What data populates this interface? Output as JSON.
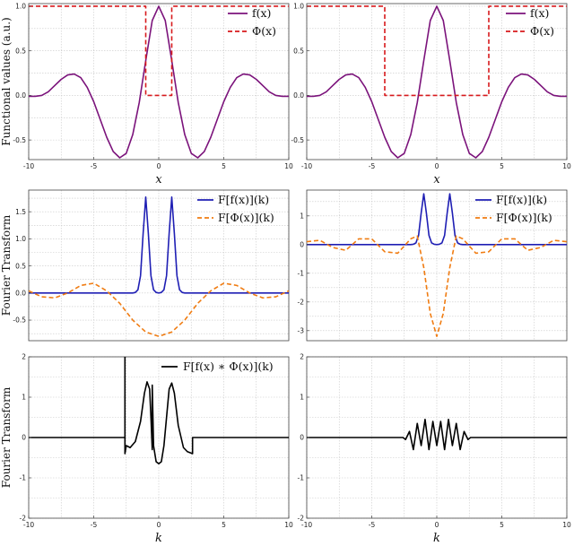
{
  "chart_data": [
    {
      "type": "line",
      "panel": "top-left",
      "xlabel": "x",
      "ylabel": "Functional values (a.u.)",
      "xlim": [
        -10,
        10
      ],
      "ylim": [
        -0.72,
        1.03
      ],
      "xticks": [
        "-10",
        "-5",
        "0",
        "5",
        "10"
      ],
      "yticks": [
        "-0.5",
        "0.0",
        "0.5",
        "1.0"
      ],
      "grid": true,
      "legend": "top-right",
      "series": [
        {
          "name": "f(x)",
          "color": "#7b137b",
          "dash": "solid",
          "x": [
            -10,
            -9.5,
            -9,
            -8.5,
            -8,
            -7.5,
            -7,
            -6.5,
            -6,
            -5.5,
            -5,
            -4.5,
            -4,
            -3.5,
            -3,
            -2.5,
            -2,
            -1.5,
            -1,
            -0.5,
            0,
            0.5,
            1,
            1.5,
            2,
            2.5,
            3,
            3.5,
            4,
            4.5,
            5,
            5.5,
            6,
            6.5,
            7,
            7.5,
            8,
            8.5,
            9,
            9.5,
            10
          ],
          "y": [
            -0.01,
            -0.01,
            0.0,
            0.04,
            0.11,
            0.18,
            0.23,
            0.24,
            0.2,
            0.09,
            -0.07,
            -0.27,
            -0.47,
            -0.63,
            -0.7,
            -0.65,
            -0.44,
            -0.08,
            0.39,
            0.84,
            1.0,
            0.84,
            0.39,
            -0.08,
            -0.44,
            -0.65,
            -0.7,
            -0.63,
            -0.47,
            -0.27,
            -0.07,
            0.09,
            0.2,
            0.24,
            0.23,
            0.18,
            0.11,
            0.04,
            0.0,
            -0.01,
            -0.01
          ]
        },
        {
          "name": "Φ(x)",
          "color": "#d7191c",
          "dash": "dashed",
          "x": [
            -10,
            -1,
            -1,
            1,
            1,
            10
          ],
          "y": [
            1,
            1,
            0,
            0,
            1,
            1
          ]
        }
      ]
    },
    {
      "type": "line",
      "panel": "top-right",
      "xlabel": "x",
      "ylabel": "",
      "xlim": [
        -10,
        10
      ],
      "ylim": [
        -0.72,
        1.03
      ],
      "xticks": [
        "-10",
        "-5",
        "0",
        "5",
        "10"
      ],
      "yticks": [
        "-0.5",
        "0.0",
        "0.5",
        "1.0"
      ],
      "grid": true,
      "legend": "top-right",
      "series": [
        {
          "name": "f(x)",
          "color": "#7b137b",
          "dash": "solid",
          "x": [
            -10,
            -9.5,
            -9,
            -8.5,
            -8,
            -7.5,
            -7,
            -6.5,
            -6,
            -5.5,
            -5,
            -4.5,
            -4,
            -3.5,
            -3,
            -2.5,
            -2,
            -1.5,
            -1,
            -0.5,
            0,
            0.5,
            1,
            1.5,
            2,
            2.5,
            3,
            3.5,
            4,
            4.5,
            5,
            5.5,
            6,
            6.5,
            7,
            7.5,
            8,
            8.5,
            9,
            9.5,
            10
          ],
          "y": [
            -0.01,
            -0.01,
            0.0,
            0.04,
            0.11,
            0.18,
            0.23,
            0.24,
            0.2,
            0.09,
            -0.07,
            -0.27,
            -0.47,
            -0.63,
            -0.7,
            -0.65,
            -0.44,
            -0.08,
            0.39,
            0.84,
            1.0,
            0.84,
            0.39,
            -0.08,
            -0.44,
            -0.65,
            -0.7,
            -0.63,
            -0.47,
            -0.27,
            -0.07,
            0.09,
            0.2,
            0.24,
            0.23,
            0.18,
            0.11,
            0.04,
            0.0,
            -0.01,
            -0.01
          ]
        },
        {
          "name": "Φ(x)",
          "color": "#d7191c",
          "dash": "dashed",
          "x": [
            -10,
            -4,
            -4,
            4,
            4,
            10
          ],
          "y": [
            1,
            1,
            0,
            0,
            1,
            1
          ]
        }
      ]
    },
    {
      "type": "line",
      "panel": "middle-left",
      "xlabel": "",
      "ylabel": "Fourier Transform",
      "xlim": [
        -10,
        10
      ],
      "ylim": [
        -0.88,
        1.9
      ],
      "xticks": [],
      "yticks": [
        "-0.5",
        "0.0",
        "0.5",
        "1.0",
        "1.5"
      ],
      "grid": true,
      "legend": "top-right",
      "series": [
        {
          "name": "F[f(x)](k)",
          "color": "#1f1fb4",
          "dash": "solid",
          "x": [
            -10,
            -2,
            -1.8,
            -1.6,
            -1.4,
            -1.2,
            -1,
            -0.8,
            -0.6,
            -0.4,
            -0.2,
            0,
            0.2,
            0.4,
            0.6,
            0.8,
            1,
            1.2,
            1.4,
            1.6,
            1.8,
            2,
            10
          ],
          "y": [
            0,
            0,
            0.01,
            0.06,
            0.32,
            1.1,
            1.77,
            1.1,
            0.32,
            0.06,
            0.01,
            0,
            0.01,
            0.06,
            0.32,
            1.1,
            1.77,
            1.1,
            0.32,
            0.06,
            0.01,
            0,
            0
          ]
        },
        {
          "name": "F[Φ(x)](k)",
          "color": "#f07c12",
          "dash": "dashed",
          "x": [
            -10,
            -9,
            -8,
            -7,
            -6,
            -5,
            -4,
            -3,
            -2,
            -1,
            0,
            1,
            2,
            3,
            4,
            5,
            6,
            7,
            8,
            9,
            10
          ],
          "y": [
            0.04,
            -0.07,
            -0.09,
            0.0,
            0.14,
            0.18,
            0.04,
            -0.19,
            -0.5,
            -0.72,
            -0.8,
            -0.72,
            -0.5,
            -0.19,
            0.04,
            0.18,
            0.14,
            0.0,
            -0.09,
            -0.07,
            0.04
          ]
        }
      ]
    },
    {
      "type": "line",
      "panel": "middle-right",
      "xlabel": "",
      "ylabel": "",
      "xlim": [
        -10,
        10
      ],
      "ylim": [
        -3.35,
        1.9
      ],
      "xticks": [],
      "yticks": [
        "-3",
        "-2",
        "-1",
        "0",
        "1"
      ],
      "grid": true,
      "legend": "top-right",
      "series": [
        {
          "name": "F[f(x)](k)",
          "color": "#1f1fb4",
          "dash": "solid",
          "x": [
            -10,
            -2,
            -1.8,
            -1.6,
            -1.4,
            -1.2,
            -1,
            -0.8,
            -0.6,
            -0.4,
            -0.2,
            0,
            0.2,
            0.4,
            0.6,
            0.8,
            1,
            1.2,
            1.4,
            1.6,
            1.8,
            2,
            10
          ],
          "y": [
            0,
            0,
            0.01,
            0.06,
            0.32,
            1.1,
            1.77,
            1.1,
            0.32,
            0.06,
            0.01,
            0,
            0.01,
            0.06,
            0.32,
            1.1,
            1.77,
            1.1,
            0.32,
            0.06,
            0.01,
            0,
            0
          ]
        },
        {
          "name": "F[Φ(x)](k)",
          "color": "#f07c12",
          "dash": "dashed",
          "x": [
            -10,
            -9,
            -8,
            -7,
            -6,
            -5,
            -4,
            -3,
            -2,
            -1.5,
            -1,
            -0.5,
            0,
            0.5,
            1,
            1.5,
            2,
            3,
            4,
            5,
            6,
            7,
            8,
            9,
            10
          ],
          "y": [
            0.1,
            0.15,
            -0.1,
            -0.2,
            0.2,
            0.2,
            -0.25,
            -0.3,
            0.2,
            0.3,
            -0.8,
            -2.4,
            -3.2,
            -2.4,
            -0.8,
            0.3,
            0.2,
            -0.3,
            -0.25,
            0.2,
            0.2,
            -0.2,
            -0.1,
            0.15,
            0.1
          ]
        }
      ]
    },
    {
      "type": "line",
      "panel": "bottom-left",
      "xlabel": "k",
      "ylabel": "Fourier Transform",
      "xlim": [
        -10,
        10
      ],
      "ylim": [
        -2,
        2
      ],
      "xticks": [
        "-10",
        "-5",
        "0",
        "5",
        "10"
      ],
      "yticks": [
        "-2",
        "-1",
        "0",
        "1",
        "2"
      ],
      "grid": true,
      "legend": "top-right",
      "series": [
        {
          "name": "F[f(x) * Φ(x)](k)",
          "color": "#000000",
          "dash": "solid",
          "x": [
            -10,
            -2.6,
            -2.6,
            -2.6,
            -2.5,
            -2.2,
            -1.8,
            -1.4,
            -1.1,
            -0.9,
            -0.7,
            -0.6,
            -0.5,
            -0.5,
            -0.4,
            -0.2,
            0,
            0.2,
            0.4,
            0.6,
            0.8,
            1,
            1.2,
            1.5,
            1.9,
            2.2,
            2.6,
            2.6,
            2.6,
            10
          ],
          "y": [
            0,
            0,
            2,
            -0.4,
            -0.2,
            -0.25,
            -0.1,
            0.4,
            1.1,
            1.38,
            1.2,
            0.5,
            -0.3,
            1.3,
            -0.2,
            -0.6,
            -0.65,
            -0.6,
            -0.2,
            0.5,
            1.2,
            1.35,
            1.1,
            0.3,
            -0.25,
            -0.35,
            -0.4,
            -0.1,
            0,
            0
          ]
        }
      ]
    },
    {
      "type": "line",
      "panel": "bottom-right",
      "xlabel": "k",
      "ylabel": "",
      "xlim": [
        -10,
        10
      ],
      "ylim": [
        -2,
        2
      ],
      "xticks": [
        "-10",
        "-5",
        "0",
        "5",
        "10"
      ],
      "yticks": [
        "-2",
        "-1",
        "0",
        "1",
        "2"
      ],
      "grid": true,
      "legend": "none",
      "series": [
        {
          "name": "",
          "color": "#000000",
          "dash": "solid",
          "x": [
            -10,
            -2.6,
            -2.4,
            -2.1,
            -1.8,
            -1.5,
            -1.2,
            -0.9,
            -0.6,
            -0.3,
            0,
            0.3,
            0.6,
            0.9,
            1.2,
            1.5,
            1.8,
            2.1,
            2.4,
            2.6,
            10
          ],
          "y": [
            0,
            0,
            -0.05,
            0.15,
            -0.3,
            0.35,
            -0.2,
            0.45,
            -0.3,
            0.4,
            -0.2,
            0.4,
            -0.3,
            0.45,
            -0.2,
            0.35,
            -0.3,
            0.15,
            -0.05,
            0,
            0
          ]
        }
      ]
    }
  ],
  "legend_labels": {
    "f": "f(x)",
    "phi": "Φ(x)",
    "Ff": "F[f(x)](k)",
    "Fphi": "F[Φ(x)](k)",
    "Fconv": "F[f(x) ∗ Φ(x)](k)"
  }
}
